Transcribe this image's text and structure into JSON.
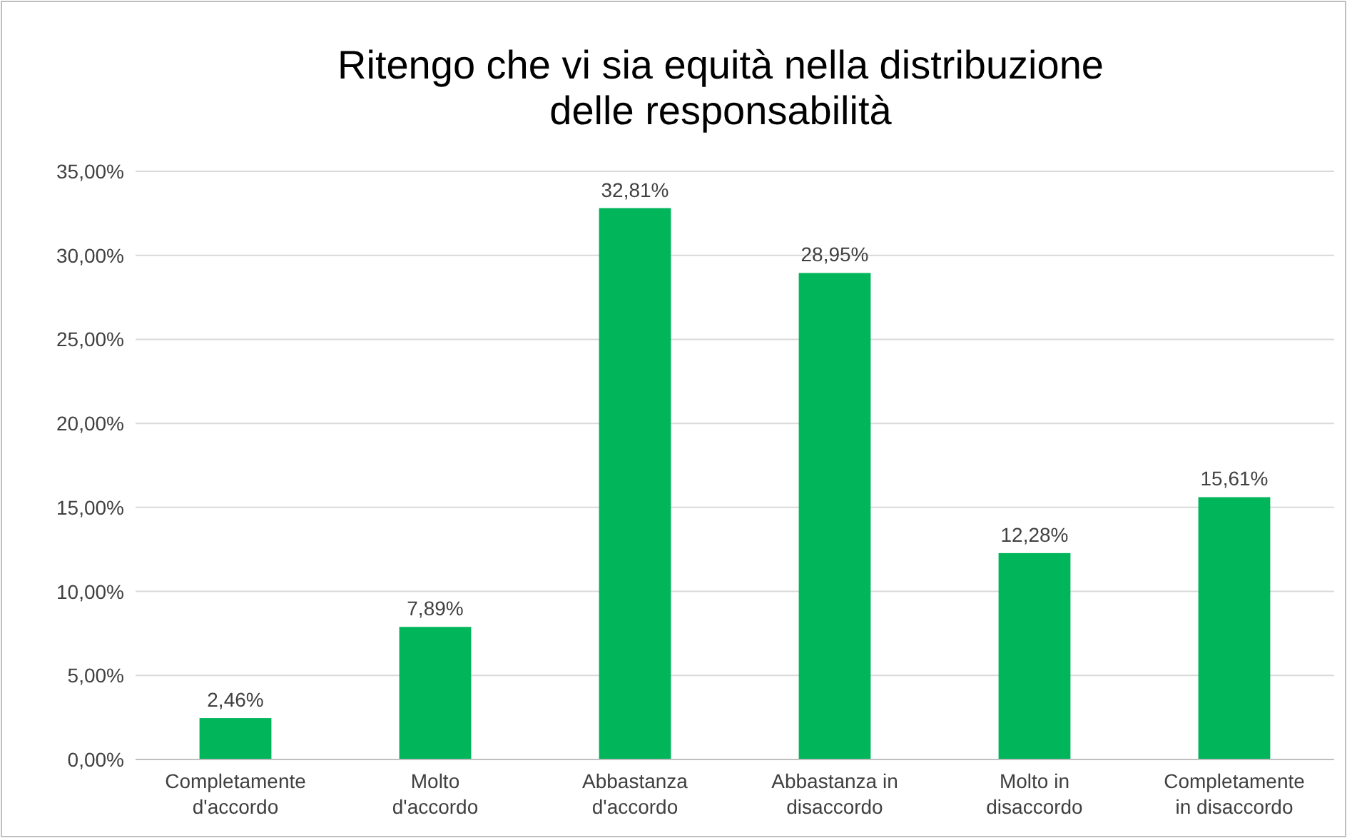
{
  "chart_data": {
    "type": "bar",
    "title": "Ritengo che vi sia equità nella distribuzione delle responsabilità",
    "categories": [
      "Completamente d'accordo",
      "Molto d'accordo",
      "Abbastanza d'accordo",
      "Abbastanza in disaccordo",
      "Molto in disaccordo",
      "Completamente in disaccordo"
    ],
    "values": [
      2.46,
      7.89,
      32.81,
      28.95,
      12.28,
      15.61
    ],
    "value_labels": [
      "2,46%",
      "7,89%",
      "32,81%",
      "28,95%",
      "12,28%",
      "15,61%"
    ],
    "color": "#00b55a",
    "ylim": [
      0,
      35
    ],
    "yticks": [
      {
        "value": 0,
        "label": "0,00%"
      },
      {
        "value": 5,
        "label": "5,00%"
      },
      {
        "value": 10,
        "label": "10,00%"
      },
      {
        "value": 15,
        "label": "15,00%"
      },
      {
        "value": 20,
        "label": "20,00%"
      },
      {
        "value": 25,
        "label": "25,00%"
      },
      {
        "value": 30,
        "label": "30,00%"
      },
      {
        "value": 35,
        "label": "35,00%"
      }
    ],
    "grid": "y"
  }
}
